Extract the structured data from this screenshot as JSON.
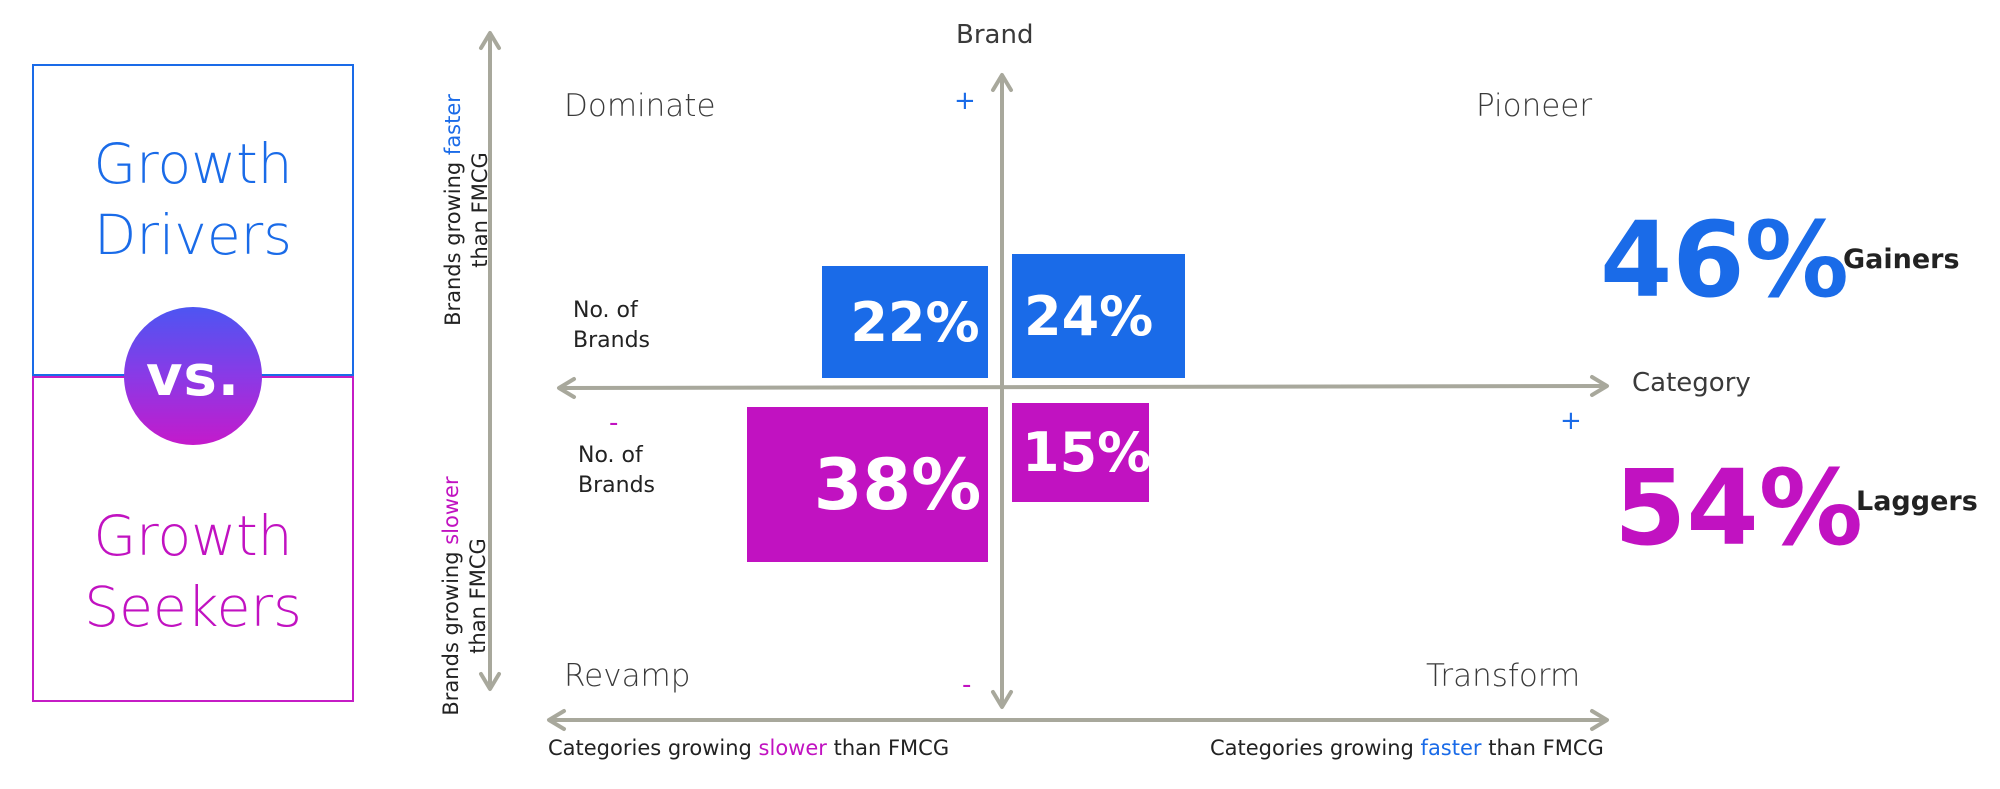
{
  "left_panel": {
    "top_line1": "Growth",
    "top_line2": "Drivers",
    "vs": "vs.",
    "bottom_line1": "Growth",
    "bottom_line2": "Seekers"
  },
  "axes": {
    "y_axis_title": "Brand",
    "x_axis_title": "Category",
    "plus": "+",
    "minus": "-",
    "left_top_a": "Brands growing ",
    "left_top_b": "faster",
    "left_top_c": "than FMCG",
    "left_bot_a": "Brands growing ",
    "left_bot_b": "slower",
    "left_bot_c": "than FMCG",
    "bottom_left_a": "Categories growing ",
    "bottom_left_b": "slower",
    "bottom_left_c": " than FMCG",
    "bottom_right_a": "Categories growing ",
    "bottom_right_b": "faster",
    "bottom_right_c": " than FMCG"
  },
  "quadrants": {
    "top_left": "Dominate",
    "top_right": "Pioneer",
    "bottom_left": "Revamp",
    "bottom_right": "Transform"
  },
  "boxes": {
    "no_of_brands_1a": "No. of",
    "no_of_brands_1b": "Brands",
    "no_of_brands_2a": "No. of",
    "no_of_brands_2b": "Brands",
    "top_left_pct": "22%",
    "top_right_pct": "24%",
    "bottom_left_pct": "38%",
    "bottom_right_pct": "15%"
  },
  "summary": {
    "gainers_pct": "46%",
    "gainers_label": "Gainers",
    "laggers_pct": "54%",
    "laggers_label": "Laggers"
  },
  "colors": {
    "blue": "#1a6be8",
    "magenta": "#c112c1",
    "axis": "#a8a89c"
  }
}
